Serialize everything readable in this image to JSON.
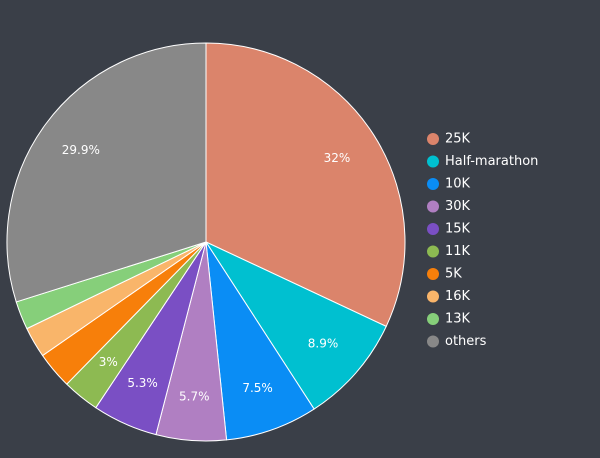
{
  "chart_data": {
    "type": "pie",
    "title": "",
    "slices": [
      {
        "label": "25K",
        "value": 32,
        "display": "32%",
        "color": "#db846b"
      },
      {
        "label": "Half-marathon",
        "value": 8.9,
        "display": "8.9%",
        "color": "#00c0d0"
      },
      {
        "label": "10K",
        "value": 7.5,
        "display": "7.5%",
        "color": "#0a8df5"
      },
      {
        "label": "30K",
        "value": 5.7,
        "display": "5.7%",
        "color": "#b07fc2"
      },
      {
        "label": "15K",
        "value": 5.3,
        "display": "5.3%",
        "color": "#7a4fc4"
      },
      {
        "label": "11K",
        "value": 3,
        "display": "3%",
        "color": "#8dba52"
      },
      {
        "label": "5K",
        "value": 3,
        "display": "",
        "color": "#f77f0a"
      },
      {
        "label": "16K",
        "value": 2.5,
        "display": "",
        "color": "#f9b56a"
      },
      {
        "label": "13K",
        "value": 2.3,
        "display": "",
        "color": "#86cf7a"
      },
      {
        "label": "others",
        "value": 29.9,
        "display": "29.9%",
        "color": "#888888"
      }
    ],
    "legend_position": "right"
  }
}
